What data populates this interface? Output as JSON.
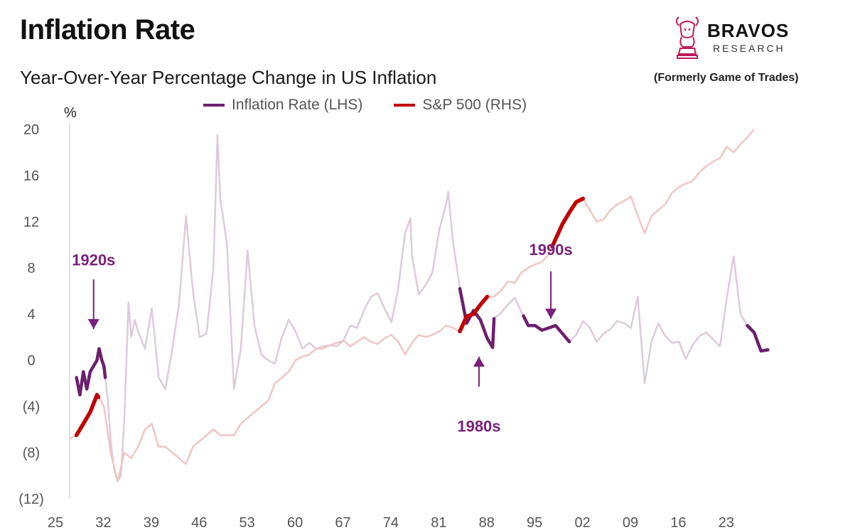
{
  "header": {
    "title": "Inflation Rate",
    "subtitle": "Year-Over-Year Percentage Change in US Inflation"
  },
  "brand": {
    "name": "BRAVOS",
    "sub": "RESEARCH",
    "formerly": "(Formerly Game of Trades)",
    "logo_icon": "bull-chess-knight-icon",
    "logo_color": "#c2185b"
  },
  "colors": {
    "inflation_faded": "#dccbdc",
    "inflation_highlight": "#6b1f6e",
    "sp500_faded": "#f1c5c5",
    "sp500_highlight": "#c00000",
    "annotation": "#7a1f7a",
    "tick_text": "#555555"
  },
  "chart_data": {
    "type": "line",
    "y_unit_label": "%",
    "ylim": [
      -12,
      20
    ],
    "yticks": [
      20,
      16,
      12,
      8,
      4,
      0,
      -4,
      -8,
      -12
    ],
    "ytick_labels": [
      "20",
      "16",
      "12",
      "8",
      "4",
      "0",
      "(4)",
      "(8)",
      "(12)"
    ],
    "xlim": [
      1925,
      2028
    ],
    "xticks": [
      1925,
      1932,
      1939,
      1946,
      1953,
      1960,
      1967,
      1974,
      1981,
      1988,
      1995,
      2002,
      2009,
      2016,
      2023
    ],
    "xtick_labels": [
      "25",
      "32",
      "39",
      "46",
      "53",
      "60",
      "67",
      "74",
      "81",
      "88",
      "95",
      "02",
      "09",
      "16",
      "23"
    ],
    "legend_position": "top-center",
    "grid": false,
    "series": [
      {
        "name": "Inflation Rate (LHS)",
        "axis": "left",
        "points": [
          [
            1926,
            -1.5
          ],
          [
            1926.5,
            -3.0
          ],
          [
            1927,
            -1.0
          ],
          [
            1927.5,
            -2.5
          ],
          [
            1928,
            -1.0
          ],
          [
            1928.5,
            -0.5
          ],
          [
            1929,
            0.0
          ],
          [
            1929.3,
            1.0
          ],
          [
            1929.7,
            0.0
          ],
          [
            1930,
            -0.5
          ],
          [
            1930.6,
            -3.5
          ],
          [
            1931,
            -7.0
          ],
          [
            1931.5,
            -9.5
          ],
          [
            1932,
            -10.5
          ],
          [
            1932.5,
            -10.0
          ],
          [
            1933,
            -5.0
          ],
          [
            1933.6,
            5.0
          ],
          [
            1934,
            2.0
          ],
          [
            1934.5,
            3.5
          ],
          [
            1935,
            2.5
          ],
          [
            1936,
            1.0
          ],
          [
            1937,
            4.5
          ],
          [
            1938,
            -1.5
          ],
          [
            1939,
            -2.5
          ],
          [
            1940,
            1.0
          ],
          [
            1941,
            5.0
          ],
          [
            1942,
            12.5
          ],
          [
            1943,
            6.0
          ],
          [
            1944,
            2.0
          ],
          [
            1945,
            2.3
          ],
          [
            1946,
            8.0
          ],
          [
            1946.6,
            19.5
          ],
          [
            1947,
            14.0
          ],
          [
            1948,
            10.0
          ],
          [
            1949,
            -2.5
          ],
          [
            1950,
            1.0
          ],
          [
            1951,
            9.5
          ],
          [
            1952,
            3.0
          ],
          [
            1953,
            0.5
          ],
          [
            1954,
            0.0
          ],
          [
            1955,
            -0.3
          ],
          [
            1956,
            2.0
          ],
          [
            1957,
            3.5
          ],
          [
            1958,
            2.5
          ],
          [
            1959,
            1.0
          ],
          [
            1960,
            1.5
          ],
          [
            1961,
            1.0
          ],
          [
            1962,
            1.2
          ],
          [
            1963,
            1.3
          ],
          [
            1964,
            1.2
          ],
          [
            1965,
            1.7
          ],
          [
            1966,
            3.0
          ],
          [
            1967,
            2.8
          ],
          [
            1968,
            4.3
          ],
          [
            1969,
            5.5
          ],
          [
            1970,
            5.8
          ],
          [
            1971,
            4.5
          ],
          [
            1972,
            3.3
          ],
          [
            1973,
            6.2
          ],
          [
            1974,
            11.0
          ],
          [
            1974.8,
            12.3
          ],
          [
            1975,
            9.1
          ],
          [
            1976,
            5.7
          ],
          [
            1977,
            6.5
          ],
          [
            1978,
            7.6
          ],
          [
            1979,
            11.3
          ],
          [
            1980,
            13.5
          ],
          [
            1980.3,
            14.6
          ],
          [
            1981,
            10.3
          ],
          [
            1982,
            6.2
          ],
          [
            1983,
            3.2
          ],
          [
            1984,
            4.3
          ],
          [
            1985,
            3.5
          ],
          [
            1986,
            1.9
          ],
          [
            1986.8,
            1.1
          ],
          [
            1987,
            3.6
          ],
          [
            1988,
            4.1
          ],
          [
            1989,
            4.8
          ],
          [
            1990,
            5.4
          ],
          [
            1991,
            4.2
          ],
          [
            1992,
            3.0
          ],
          [
            1993,
            3.0
          ],
          [
            1994,
            2.6
          ],
          [
            1995,
            2.8
          ],
          [
            1996,
            3.0
          ],
          [
            1997,
            2.3
          ],
          [
            1998,
            1.6
          ],
          [
            1999,
            2.2
          ],
          [
            2000,
            3.4
          ],
          [
            2001,
            2.8
          ],
          [
            2002,
            1.6
          ],
          [
            2003,
            2.3
          ],
          [
            2004,
            2.7
          ],
          [
            2005,
            3.4
          ],
          [
            2006,
            3.2
          ],
          [
            2007,
            2.8
          ],
          [
            2008,
            5.5
          ],
          [
            2009,
            -2.0
          ],
          [
            2010,
            1.6
          ],
          [
            2011,
            3.2
          ],
          [
            2012,
            2.1
          ],
          [
            2013,
            1.5
          ],
          [
            2014,
            1.6
          ],
          [
            2015,
            0.1
          ],
          [
            2016,
            1.3
          ],
          [
            2017,
            2.1
          ],
          [
            2018,
            2.4
          ],
          [
            2019,
            1.8
          ],
          [
            2020,
            1.2
          ],
          [
            2021,
            5.4
          ],
          [
            2022,
            9.0
          ],
          [
            2023,
            4.0
          ],
          [
            2024,
            3.0
          ],
          [
            2025,
            2.4
          ],
          [
            2026,
            0.8
          ],
          [
            2027,
            0.9
          ]
        ],
        "highlight_ranges": [
          [
            1926,
            1930.2
          ],
          [
            1982,
            1987
          ],
          [
            1991.3,
            1998
          ],
          [
            2024,
            2027
          ]
        ]
      },
      {
        "name": "S&P 500 (RHS)",
        "axis": "right",
        "points": [
          [
            1925,
            -6.8
          ],
          [
            1926,
            -6.5
          ],
          [
            1927,
            -5.5
          ],
          [
            1928,
            -4.5
          ],
          [
            1929,
            -3.0
          ],
          [
            1930,
            -4.0
          ],
          [
            1931,
            -8.0
          ],
          [
            1932,
            -10.5
          ],
          [
            1933,
            -8.0
          ],
          [
            1934,
            -8.5
          ],
          [
            1935,
            -7.5
          ],
          [
            1936,
            -6.0
          ],
          [
            1937,
            -5.5
          ],
          [
            1938,
            -7.5
          ],
          [
            1939,
            -7.5
          ],
          [
            1940,
            -8.0
          ],
          [
            1941,
            -8.5
          ],
          [
            1942,
            -9.0
          ],
          [
            1943,
            -7.5
          ],
          [
            1944,
            -7.0
          ],
          [
            1945,
            -6.5
          ],
          [
            1946,
            -6.0
          ],
          [
            1947,
            -6.5
          ],
          [
            1948,
            -6.5
          ],
          [
            1949,
            -6.5
          ],
          [
            1950,
            -5.5
          ],
          [
            1951,
            -5.0
          ],
          [
            1952,
            -4.5
          ],
          [
            1953,
            -4.0
          ],
          [
            1954,
            -3.5
          ],
          [
            1955,
            -2.0
          ],
          [
            1956,
            -1.5
          ],
          [
            1957,
            -1.0
          ],
          [
            1958,
            0.0
          ],
          [
            1959,
            0.3
          ],
          [
            1960,
            0.5
          ],
          [
            1961,
            1.0
          ],
          [
            1962,
            1.0
          ],
          [
            1963,
            1.3
          ],
          [
            1964,
            1.5
          ],
          [
            1965,
            1.7
          ],
          [
            1966,
            1.2
          ],
          [
            1967,
            1.6
          ],
          [
            1968,
            2.0
          ],
          [
            1969,
            1.6
          ],
          [
            1970,
            1.4
          ],
          [
            1971,
            1.9
          ],
          [
            1972,
            2.2
          ],
          [
            1973,
            1.6
          ],
          [
            1974,
            0.5
          ],
          [
            1975,
            1.5
          ],
          [
            1976,
            2.2
          ],
          [
            1977,
            2.0
          ],
          [
            1978,
            2.2
          ],
          [
            1979,
            2.5
          ],
          [
            1980,
            3.0
          ],
          [
            1981,
            2.8
          ],
          [
            1982,
            2.5
          ],
          [
            1983,
            3.8
          ],
          [
            1984,
            4.0
          ],
          [
            1985,
            4.8
          ],
          [
            1986,
            5.5
          ],
          [
            1987,
            5.5
          ],
          [
            1988,
            6.0
          ],
          [
            1989,
            6.8
          ],
          [
            1990,
            6.7
          ],
          [
            1991,
            7.6
          ],
          [
            1992,
            8.0
          ],
          [
            1993,
            8.3
          ],
          [
            1994,
            8.5
          ],
          [
            1995,
            9.2
          ],
          [
            1996,
            10.5
          ],
          [
            1997,
            11.8
          ],
          [
            1998,
            12.8
          ],
          [
            1999,
            13.7
          ],
          [
            2000,
            14.0
          ],
          [
            2001,
            13.0
          ],
          [
            2002,
            12.0
          ],
          [
            2003,
            12.2
          ],
          [
            2004,
            13.0
          ],
          [
            2005,
            13.5
          ],
          [
            2006,
            13.8
          ],
          [
            2007,
            14.2
          ],
          [
            2008,
            12.5
          ],
          [
            2009,
            11.0
          ],
          [
            2010,
            12.5
          ],
          [
            2011,
            13.0
          ],
          [
            2012,
            13.5
          ],
          [
            2013,
            14.5
          ],
          [
            2014,
            15.0
          ],
          [
            2015,
            15.3
          ],
          [
            2016,
            15.5
          ],
          [
            2017,
            16.3
          ],
          [
            2018,
            16.8
          ],
          [
            2019,
            17.2
          ],
          [
            2020,
            17.5
          ],
          [
            2021,
            18.5
          ],
          [
            2022,
            18.0
          ],
          [
            2023,
            18.7
          ],
          [
            2024,
            19.3
          ],
          [
            2025,
            20.0
          ]
        ],
        "highlight_ranges": [
          [
            1926,
            1929.2
          ],
          [
            1982,
            1986
          ],
          [
            1995.5,
            2000
          ]
        ]
      }
    ],
    "annotations": [
      {
        "label": "1920s",
        "x": 1928.5,
        "label_y": 8.7,
        "arrow": "down",
        "arrow_from": 7.0,
        "arrow_to": 2.7
      },
      {
        "label": "1980s",
        "x": 1984.8,
        "label_y": -5.7,
        "arrow": "up",
        "arrow_from": -2.3,
        "arrow_to": 0.3
      },
      {
        "label": "1990s",
        "x": 1995.3,
        "label_y": 9.6,
        "arrow": "down",
        "arrow_from": 7.7,
        "arrow_to": 3.6
      }
    ]
  }
}
